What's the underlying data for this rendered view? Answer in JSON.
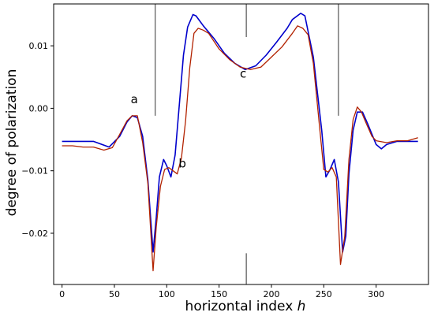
{
  "chart_data": {
    "type": "line",
    "title": "",
    "xlabel": "horizontal index",
    "xlabel_var": "h",
    "ylabel": "degree of polarization",
    "xlim": [
      -8,
      350
    ],
    "ylim": [
      -0.0282,
      0.0167
    ],
    "xticks": [
      0,
      50,
      100,
      150,
      200,
      250,
      300
    ],
    "yticks": [
      -0.02,
      -0.01,
      0.0,
      0.01
    ],
    "ytick_labels": [
      "−0.02",
      "−0.01",
      "0.00",
      "0.01"
    ],
    "grid": false,
    "legend": "none",
    "vertical_lines": [
      {
        "x": 89,
        "ranges": [
          [
            -0.0012,
            0.0167
          ]
        ]
      },
      {
        "x": 176,
        "ranges": [
          [
            0.0114,
            0.0167
          ],
          [
            -0.0282,
            -0.0232
          ]
        ]
      },
      {
        "x": 264,
        "ranges": [
          [
            -0.0012,
            0.0167
          ]
        ]
      }
    ],
    "vertical_line_color": "#555555",
    "annotations": [
      {
        "text": "a",
        "x": 69,
        "y": 0.0008
      },
      {
        "text": "b",
        "x": 115,
        "y": -0.0095
      },
      {
        "text": "c",
        "x": 173,
        "y": 0.0049
      }
    ],
    "series": [
      {
        "color": "#0000cc",
        "x": [
          0,
          30,
          45,
          55,
          62,
          67,
          72,
          77,
          82,
          87,
          90,
          93,
          97,
          100,
          104,
          108,
          112,
          116,
          120,
          125,
          128,
          135,
          145,
          155,
          165,
          175,
          185,
          195,
          205,
          215,
          220,
          228,
          232,
          240,
          248,
          252,
          256,
          260,
          264,
          268,
          271,
          274,
          278,
          282,
          287,
          292,
          300,
          305,
          310,
          320,
          340
        ],
        "y": [
          -0.0053,
          -0.0053,
          -0.0062,
          -0.0045,
          -0.0022,
          -0.0012,
          -0.0015,
          -0.0045,
          -0.0115,
          -0.023,
          -0.0175,
          -0.011,
          -0.0082,
          -0.0092,
          -0.011,
          -0.0075,
          0.0005,
          0.0085,
          0.013,
          0.015,
          0.0148,
          0.0132,
          0.0112,
          0.0088,
          0.0072,
          0.0062,
          0.0068,
          0.0085,
          0.0106,
          0.0128,
          0.0142,
          0.0152,
          0.0148,
          0.0082,
          -0.0035,
          -0.011,
          -0.0098,
          -0.0082,
          -0.0118,
          -0.023,
          -0.0205,
          -0.0105,
          -0.0035,
          -0.0006,
          -0.0006,
          -0.0025,
          -0.0058,
          -0.0065,
          -0.0058,
          -0.0053,
          -0.0053
        ]
      },
      {
        "color": "#b22200",
        "x": [
          0,
          10,
          20,
          30,
          40,
          48,
          55,
          62,
          67,
          72,
          77,
          82,
          87,
          90,
          94,
          98,
          102,
          106,
          110,
          114,
          118,
          122,
          126,
          130,
          135,
          140,
          150,
          160,
          170,
          180,
          190,
          200,
          210,
          220,
          225,
          230,
          235,
          240,
          246,
          250,
          254,
          258,
          262,
          266,
          270,
          274,
          278,
          282,
          286,
          290,
          296,
          300,
          310,
          320,
          330,
          340
        ],
        "y": [
          -0.006,
          -0.006,
          -0.0062,
          -0.0062,
          -0.0067,
          -0.0063,
          -0.0042,
          -0.002,
          -0.0012,
          -0.0012,
          -0.0055,
          -0.012,
          -0.026,
          -0.019,
          -0.0125,
          -0.0098,
          -0.0095,
          -0.01,
          -0.0105,
          -0.008,
          -0.002,
          0.0065,
          0.012,
          0.0128,
          0.0125,
          0.012,
          0.0095,
          0.0078,
          0.0066,
          0.0062,
          0.0066,
          0.0082,
          0.0098,
          0.012,
          0.0132,
          0.0128,
          0.0118,
          0.0072,
          -0.003,
          -0.0098,
          -0.0102,
          -0.0095,
          -0.011,
          -0.025,
          -0.0205,
          -0.0082,
          -0.0018,
          0.0002,
          -0.0006,
          -0.0022,
          -0.0045,
          -0.0052,
          -0.0055,
          -0.0052,
          -0.0052,
          -0.0047
        ]
      }
    ]
  }
}
